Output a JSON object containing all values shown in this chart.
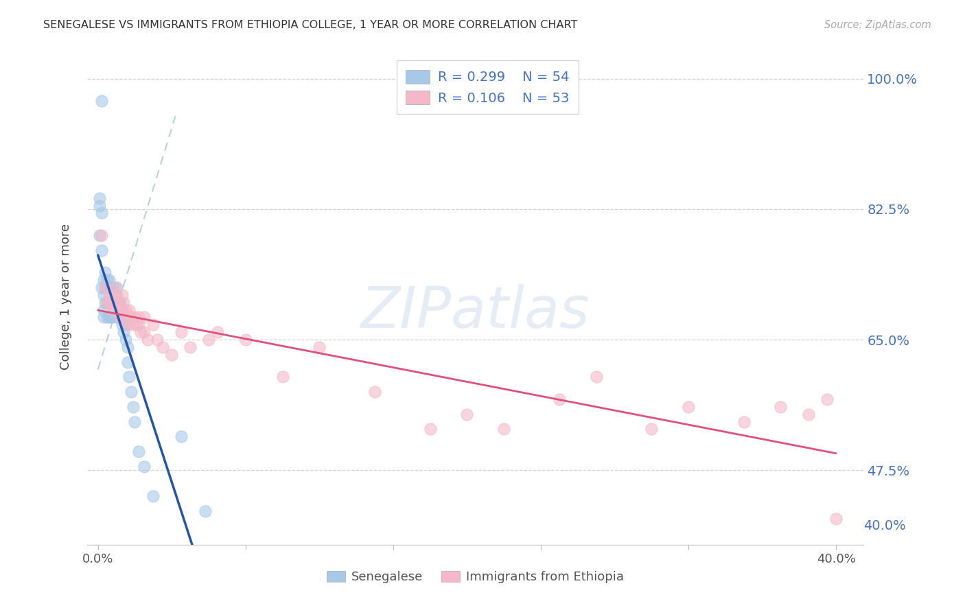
{
  "title": "SENEGALESE VS IMMIGRANTS FROM ETHIOPIA COLLEGE, 1 YEAR OR MORE CORRELATION CHART",
  "source": "Source: ZipAtlas.com",
  "ylabel": "College, 1 year or more",
  "legend_label1": "Senegalese",
  "legend_label2": "Immigrants from Ethiopia",
  "R1": 0.299,
  "N1": 54,
  "R2": 0.106,
  "N2": 53,
  "color1": "#a8c8e8",
  "color2": "#f4b8c8",
  "trendline1_color": "#2255aa",
  "trendline2_color": "#e0507a",
  "dashed_line_color": "#aac8e0",
  "ytick_vals": [
    0.475,
    0.65,
    0.825,
    1.0
  ],
  "ytick_labels": [
    "47.5%",
    "65.0%",
    "82.5%",
    "100.0%"
  ],
  "xtick_vals": [
    0.0,
    0.08,
    0.16,
    0.24,
    0.32,
    0.4
  ],
  "xtick_labels": [
    "0.0%",
    "",
    "",
    "",
    "",
    "40.0%"
  ],
  "ylim": [
    0.375,
    1.04
  ],
  "xlim": [
    -0.006,
    0.415
  ],
  "background_color": "#ffffff",
  "grid_color": "#cccccc",
  "watermark": "ZIPatlas",
  "label_color": "#4472c4",
  "senegalese_x": [
    0.002,
    0.001,
    0.001,
    0.002,
    0.001,
    0.002,
    0.002,
    0.003,
    0.003,
    0.003,
    0.003,
    0.004,
    0.004,
    0.004,
    0.005,
    0.005,
    0.005,
    0.005,
    0.006,
    0.006,
    0.006,
    0.006,
    0.007,
    0.007,
    0.007,
    0.008,
    0.008,
    0.008,
    0.009,
    0.009,
    0.01,
    0.01,
    0.01,
    0.011,
    0.011,
    0.012,
    0.012,
    0.013,
    0.013,
    0.014,
    0.014,
    0.015,
    0.015,
    0.016,
    0.016,
    0.017,
    0.018,
    0.019,
    0.02,
    0.022,
    0.025,
    0.03,
    0.045,
    0.058
  ],
  "senegalese_y": [
    0.97,
    0.84,
    0.83,
    0.82,
    0.79,
    0.77,
    0.72,
    0.73,
    0.71,
    0.69,
    0.68,
    0.74,
    0.72,
    0.7,
    0.73,
    0.72,
    0.7,
    0.68,
    0.73,
    0.72,
    0.7,
    0.68,
    0.72,
    0.7,
    0.68,
    0.72,
    0.7,
    0.68,
    0.71,
    0.69,
    0.72,
    0.7,
    0.68,
    0.7,
    0.68,
    0.7,
    0.68,
    0.69,
    0.67,
    0.68,
    0.66,
    0.67,
    0.65,
    0.64,
    0.62,
    0.6,
    0.58,
    0.56,
    0.54,
    0.5,
    0.48,
    0.44,
    0.52,
    0.42
  ],
  "ethiopia_x": [
    0.002,
    0.004,
    0.005,
    0.006,
    0.007,
    0.008,
    0.009,
    0.01,
    0.01,
    0.011,
    0.012,
    0.012,
    0.013,
    0.013,
    0.014,
    0.015,
    0.015,
    0.016,
    0.017,
    0.018,
    0.019,
    0.02,
    0.021,
    0.022,
    0.022,
    0.023,
    0.025,
    0.025,
    0.027,
    0.03,
    0.032,
    0.035,
    0.04,
    0.045,
    0.05,
    0.06,
    0.065,
    0.08,
    0.1,
    0.12,
    0.15,
    0.18,
    0.2,
    0.22,
    0.25,
    0.27,
    0.3,
    0.32,
    0.35,
    0.37,
    0.385,
    0.395,
    0.4
  ],
  "ethiopia_y": [
    0.79,
    0.72,
    0.7,
    0.71,
    0.7,
    0.69,
    0.72,
    0.71,
    0.7,
    0.7,
    0.69,
    0.68,
    0.71,
    0.69,
    0.7,
    0.69,
    0.68,
    0.67,
    0.69,
    0.68,
    0.67,
    0.68,
    0.67,
    0.68,
    0.67,
    0.66,
    0.68,
    0.66,
    0.65,
    0.67,
    0.65,
    0.64,
    0.63,
    0.66,
    0.64,
    0.65,
    0.66,
    0.65,
    0.6,
    0.64,
    0.58,
    0.53,
    0.55,
    0.53,
    0.57,
    0.6,
    0.53,
    0.56,
    0.54,
    0.56,
    0.55,
    0.57,
    0.41
  ]
}
